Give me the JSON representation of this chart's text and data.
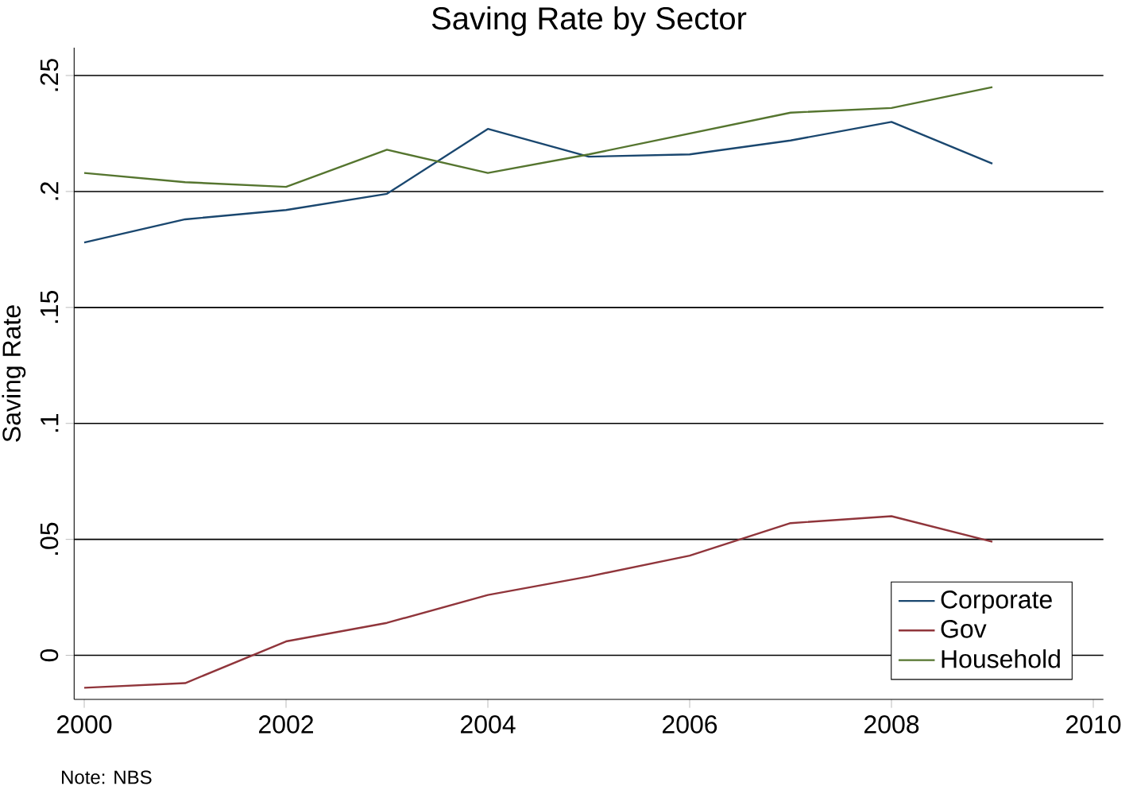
{
  "chart_data": {
    "type": "line",
    "title": "Saving Rate by Sector",
    "ylabel": "Saving Rate",
    "x": [
      2000,
      2001,
      2002,
      2003,
      2004,
      2005,
      2006,
      2007,
      2008,
      2009
    ],
    "series": [
      {
        "name": "Corporate",
        "color": "#1a476f",
        "values": [
          0.178,
          0.188,
          0.192,
          0.199,
          0.227,
          0.215,
          0.216,
          0.222,
          0.23,
          0.212
        ]
      },
      {
        "name": "Gov",
        "color": "#90353b",
        "values": [
          -0.014,
          -0.012,
          0.006,
          0.014,
          0.026,
          0.034,
          0.043,
          0.057,
          0.06,
          0.049
        ]
      },
      {
        "name": "Household",
        "color": "#55752f",
        "values": [
          0.208,
          0.204,
          0.202,
          0.218,
          0.208,
          0.216,
          0.225,
          0.234,
          0.236,
          0.245
        ]
      }
    ],
    "xlim": [
      1999.9,
      2010.1
    ],
    "ylim": [
      -0.019,
      0.262
    ],
    "xticks": [
      2000,
      2002,
      2004,
      2006,
      2008,
      2010
    ],
    "yticks": [
      0,
      {
        "value": 0.05,
        "label": ".05"
      },
      {
        "value": 0.1,
        "label": ".1"
      },
      {
        "value": 0.15,
        "label": ".15"
      },
      {
        "value": 0.2,
        "label": ".2"
      },
      {
        "value": 0.25,
        "label": ".25"
      }
    ],
    "grid": "y",
    "legend": "bottom right",
    "marker": "none",
    "line_style": "solid",
    "annotations": [
      "Note: NBS"
    ]
  }
}
